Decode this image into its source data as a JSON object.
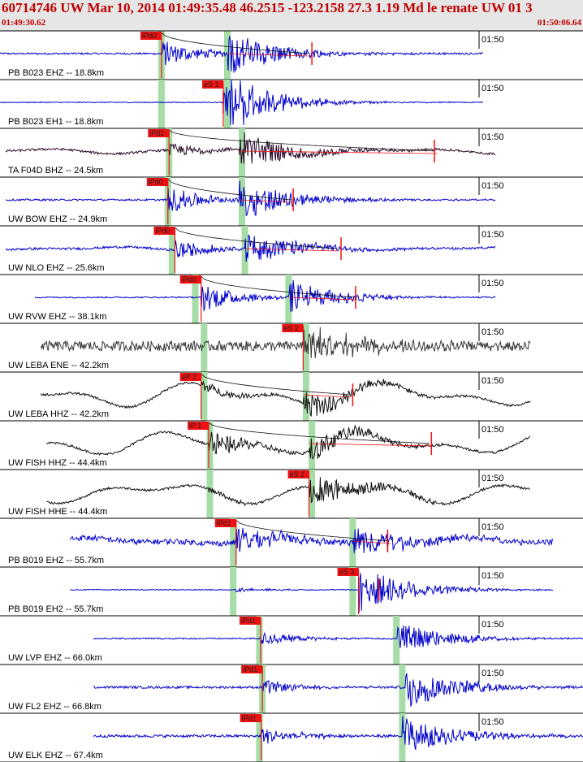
{
  "header": {
    "title": "60714746 UW Mar 10, 2014 01:49:35.48    46.2515 -123.2158 27.3 1.19 Md le renate UW 01    3",
    "start_time": "01:49:30.62",
    "end_time": "01:50:06.64"
  },
  "colors": {
    "blue": "#0000cc",
    "black": "#111111",
    "dark": "#2a0a2a",
    "gray": "#3a3a3a",
    "pick": "#ee1111",
    "window": "#a6dda6"
  },
  "traces": [
    {
      "label": "PB B023 EHZ -- 18.8km",
      "minute_label": "01:50",
      "color": "blue",
      "start": 0.0,
      "end": 0.83,
      "noise": 0.04,
      "p_time": 0.277,
      "p_amp": 0.55,
      "s_time": 0.39,
      "s_amp": 0.85,
      "pick_label": "iPd0",
      "pick_time": 0.277,
      "coda_end": 0.53,
      "red_tick": 0.535,
      "windows": [
        0.277,
        0.39
      ]
    },
    {
      "label": "PB B023 EH1 -- 18.8km",
      "minute_label": "01:50",
      "color": "blue",
      "start": 0.0,
      "end": 0.83,
      "noise": 0.02,
      "p_time": 0.383,
      "p_amp": 0.9,
      "s_time": 0.39,
      "s_amp": 0.7,
      "pick_label": "eS 1",
      "pick_time": 0.383,
      "red_tick": 0.383,
      "windows": [
        0.277,
        0.39
      ]
    },
    {
      "label": "TA F04D BHZ -- 24.5km",
      "minute_label": "01:50",
      "color": "dark",
      "start": 0.01,
      "end": 0.85,
      "noise": 0.05,
      "swell": 0.12,
      "p_time": 0.29,
      "p_amp": 0.3,
      "s_time": 0.41,
      "s_amp": 0.75,
      "pick_label": "iPd1",
      "pick_time": 0.29,
      "coda_end": 0.75,
      "red_tick": 0.745,
      "windows": [
        0.29,
        0.415
      ]
    },
    {
      "label": "UW BOW EHZ -- 24.9km",
      "minute_label": "01:50",
      "color": "blue",
      "start": 0.01,
      "end": 0.85,
      "noise": 0.04,
      "p_time": 0.288,
      "p_amp": 0.55,
      "s_time": 0.41,
      "s_amp": 0.75,
      "pick_label": "iPd0",
      "pick_time": 0.288,
      "coda_end": 0.5,
      "red_tick": 0.503,
      "windows": [
        0.288,
        0.415
      ]
    },
    {
      "label": "UW NLO EHZ -- 25.6km",
      "minute_label": "01:50",
      "color": "blue",
      "start": 0.01,
      "end": 0.85,
      "noise": 0.05,
      "swell": 0.08,
      "p_time": 0.3,
      "p_amp": 0.4,
      "s_time": 0.42,
      "s_amp": 0.6,
      "pick_label": "iPd0",
      "pick_time": 0.3,
      "coda_end": 0.58,
      "red_tick": 0.585,
      "windows": [
        0.295,
        0.42
      ]
    },
    {
      "label": "UW RVW EHZ -- 38.1km",
      "minute_label": "01:50",
      "color": "blue",
      "start": 0.06,
      "end": 0.85,
      "noise": 0.03,
      "p_time": 0.345,
      "p_amp": 0.6,
      "s_time": 0.495,
      "s_amp": 0.65,
      "pick_label": "iPd0",
      "pick_time": 0.345,
      "coda_end": 0.61,
      "red_tick": 0.61,
      "windows": [
        0.335,
        0.495
      ]
    },
    {
      "label": "UW LEBA ENE -- 42.2km",
      "minute_label": "01:50",
      "color": "gray",
      "start": 0.07,
      "end": 0.91,
      "noise": 0.22,
      "p_time": 0.52,
      "p_amp": 0.6,
      "s_time": 0.53,
      "s_amp": 0.5,
      "pick_label": "eS 2",
      "pick_time": 0.52,
      "windows": [
        0.35,
        0.525
      ]
    },
    {
      "label": "UW LEBA HHZ -- 42.2km",
      "minute_label": "01:50",
      "color": "black",
      "start": 0.07,
      "end": 0.91,
      "noise": 0.05,
      "swell": 0.6,
      "p_time": 0.345,
      "p_amp": 0.25,
      "s_time": 0.52,
      "s_amp": 0.55,
      "pick_label": "eP 2",
      "pick_time": 0.345,
      "coda_end": 0.6,
      "red_tick": 0.605,
      "windows": [
        0.35,
        0.525
      ]
    },
    {
      "label": "UW FISH HHZ -- 44.4km",
      "minute_label": "01:50",
      "color": "black",
      "start": 0.08,
      "end": 0.91,
      "noise": 0.05,
      "swell": 0.55,
      "p_time": 0.358,
      "p_amp": 0.6,
      "s_time": 0.53,
      "s_amp": 0.5,
      "pick_label": "iP 1",
      "pick_time": 0.358,
      "coda_end": 0.74,
      "red_tick": 0.74,
      "windows": [
        0.36,
        0.535
      ]
    },
    {
      "label": "UW FISH HHE -- 44.4km",
      "minute_label": "01:50",
      "color": "black",
      "start": 0.08,
      "end": 0.91,
      "noise": 0.05,
      "swell": 0.5,
      "p_time": 0.358,
      "p_amp": 0.12,
      "s_time": 0.53,
      "s_amp": 0.7,
      "pick_label": "eS 2",
      "pick_time": 0.53,
      "windows": [
        0.36,
        0.535
      ]
    },
    {
      "label": "PB B019 EHZ -- 55.7km",
      "minute_label": "01:50",
      "color": "blue",
      "start": 0.12,
      "end": 0.95,
      "noise": 0.12,
      "swell": 0.15,
      "p_time": 0.405,
      "p_amp": 0.7,
      "s_time": 0.605,
      "s_amp": 0.6,
      "pick_label": "iPd1",
      "pick_time": 0.405,
      "coda_end": 0.67,
      "red_tick": 0.665,
      "windows": [
        0.4,
        0.605
      ]
    },
    {
      "label": "PB B019 EH2 -- 55.7km",
      "minute_label": "01:50",
      "color": "blue",
      "start": 0.12,
      "end": 0.95,
      "noise": 0.02,
      "p_time": 0.405,
      "p_amp": 0.08,
      "s_time": 0.615,
      "s_amp": 0.9,
      "pick_label": "eS 3",
      "pick_time": 0.615,
      "red_tick": 0.65,
      "windows": [
        0.4,
        0.605
      ]
    },
    {
      "label": "UW LVP EHZ -- 66.0km",
      "minute_label": "01:50",
      "color": "blue",
      "start": 0.16,
      "end": 1.0,
      "noise": 0.03,
      "p_time": 0.447,
      "p_amp": 0.28,
      "s_time": 0.68,
      "s_amp": 0.6,
      "pick_label": "iPd1",
      "pick_time": 0.447,
      "windows": [
        0.445,
        0.68
      ]
    },
    {
      "label": "UW FL2 EHZ -- 66.8km",
      "minute_label": "01:50",
      "color": "blue",
      "start": 0.16,
      "end": 1.0,
      "noise": 0.05,
      "p_time": 0.45,
      "p_amp": 0.3,
      "s_time": 0.695,
      "s_amp": 0.8,
      "pick_label": "iPd1",
      "pick_time": 0.45,
      "windows": [
        0.45,
        0.69
      ]
    },
    {
      "label": "UW ELK EHZ -- 67.4km",
      "minute_label": "01:50",
      "color": "blue",
      "start": 0.16,
      "end": 1.0,
      "noise": 0.06,
      "p_time": 0.448,
      "p_amp": 0.35,
      "s_time": 0.69,
      "s_amp": 0.75,
      "pick_label": "iPd1",
      "pick_time": 0.448,
      "windows": [
        0.445,
        0.69
      ]
    }
  ]
}
